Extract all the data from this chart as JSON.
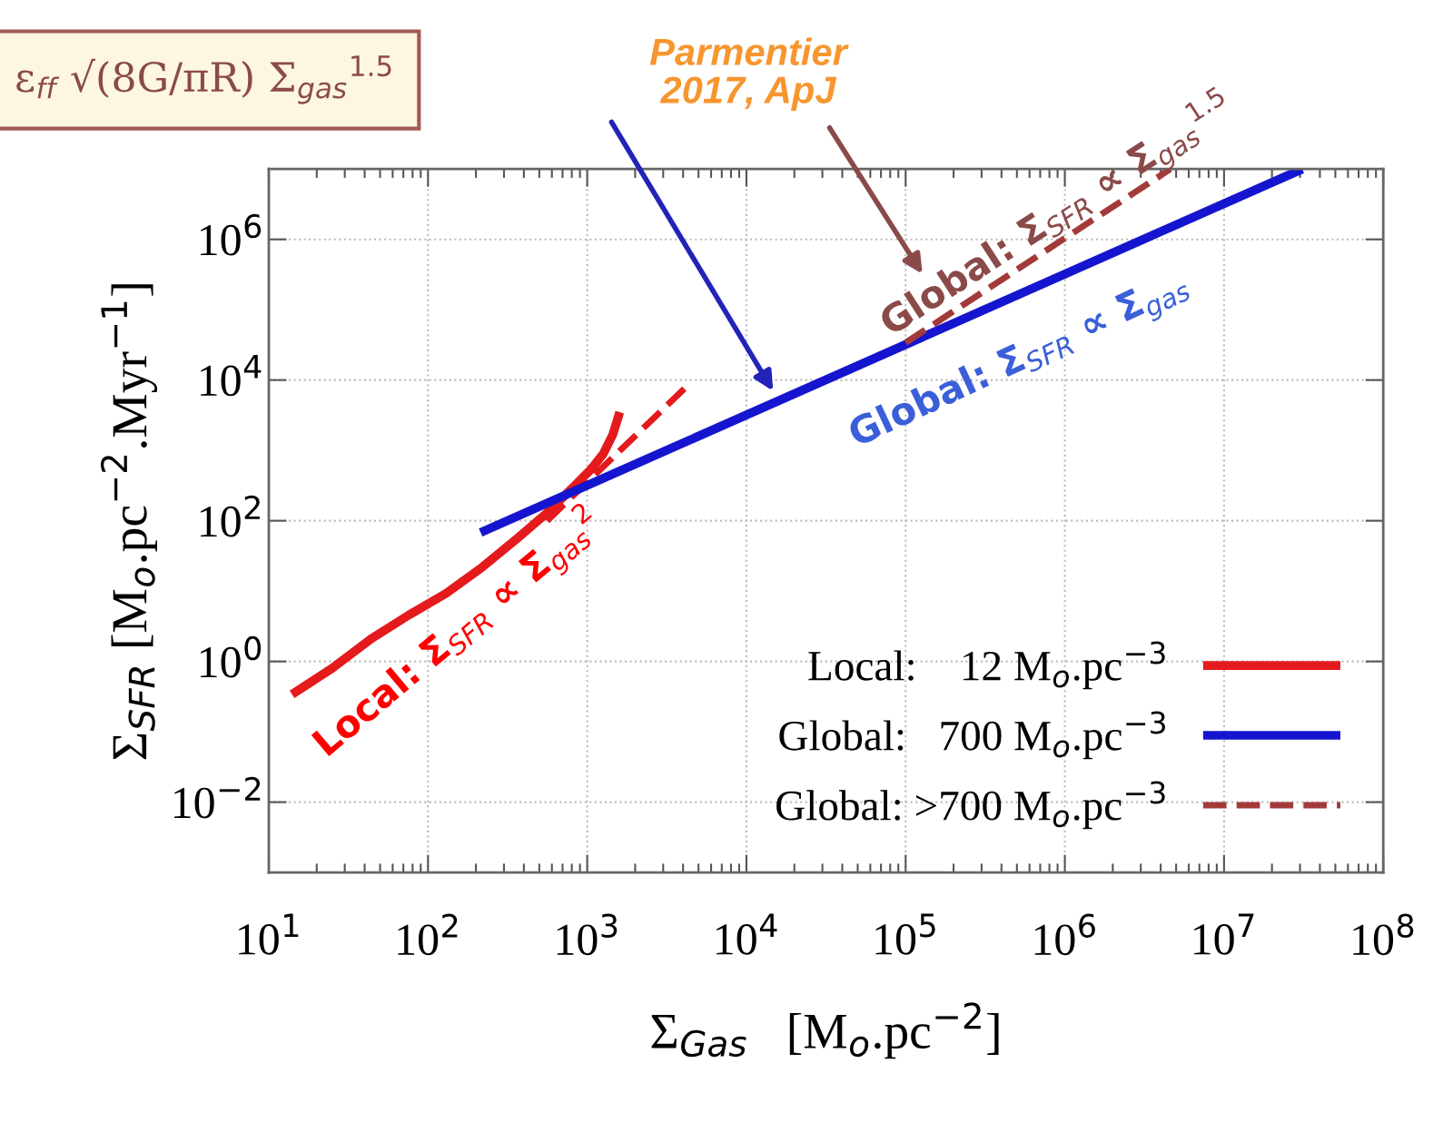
{
  "chart_data": {
    "type": "line",
    "xlabel": "Σ$_{Gas}$   [M$_{o}$.pc$^{−2}$]",
    "ylabel": "Σ$_{SFR}$ [M$_{o}$.pc$^{−2}$.Myr$^{−1}$]",
    "log": "xy",
    "grid": true,
    "legend": "bottom right",
    "xlim": [
      10,
      100000000
    ],
    "ylim": [
      0.001,
      10000000
    ],
    "xticks": [
      {
        "value": 10,
        "label": "10$^{1}$"
      },
      {
        "value": 100,
        "label": "10$^{2}$"
      },
      {
        "value": 1000,
        "label": "10$^{3}$"
      },
      {
        "value": 10000,
        "label": "10$^{4}$"
      },
      {
        "value": 100000,
        "label": "10$^{5}$"
      },
      {
        "value": 1000000,
        "label": "10$^{6}$"
      },
      {
        "value": 10000000,
        "label": "10$^{7}$"
      },
      {
        "value": 100000000,
        "label": "10$^{8}$"
      }
    ],
    "yticks": [
      {
        "value": 0.01,
        "label": "10$^{−2}$"
      },
      {
        "value": 1,
        "label": "10$^{0}$"
      },
      {
        "value": 100,
        "label": "10$^{2}$"
      },
      {
        "value": 10000,
        "label": "10$^{4}$"
      },
      {
        "value": 1000000,
        "label": "10$^{6}$"
      }
    ],
    "series": [
      {
        "name": "Local:    12 M$_{o}$.pc$^{−3}$",
        "color": "#e41a1c",
        "line_style": "solid",
        "x": [
          14,
          25,
          44,
          75,
          130,
          220,
          370,
          560,
          830,
          1050,
          1260,
          1450,
          1600
        ],
        "values": [
          0.34,
          0.8,
          2.1,
          4.5,
          9.3,
          22,
          58,
          130,
          310,
          530,
          890,
          1700,
          3500
        ]
      },
      {
        "color": "#e41a1c",
        "line_style": "dashed",
        "x": [
          560,
          4300
        ],
        "values": [
          100,
          8500
        ]
      },
      {
        "name": "Global:   700 M$_{o}$.pc$^{−3}$",
        "color": "#1515d0",
        "line_style": "solid",
        "x": [
          214,
          31000000
        ],
        "values": [
          68,
          10000000
        ]
      },
      {
        "name": "Global: >700 M$_{o}$.pc$^{−3}$",
        "color": "#a33a3a",
        "line_style": "dashed",
        "x": [
          100000,
          4600000
        ],
        "values": [
          34000,
          10000000
        ]
      }
    ],
    "annotations": [
      "ε$_{ff}$ √(8G/πR) Σ$_{gas}$$^{1.5}$",
      "Parmentier\n2017, ApJ",
      "Local: Σ$_{SFR}$ ∝ Σ$_{gas}$$^{2}$",
      "Global: Σ$_{SFR}$ ∝ Σ$_{gas}$",
      "Global: Σ$_{SFR}$ ∝ Σ$_{gas}$$^{1.5}$"
    ]
  }
}
